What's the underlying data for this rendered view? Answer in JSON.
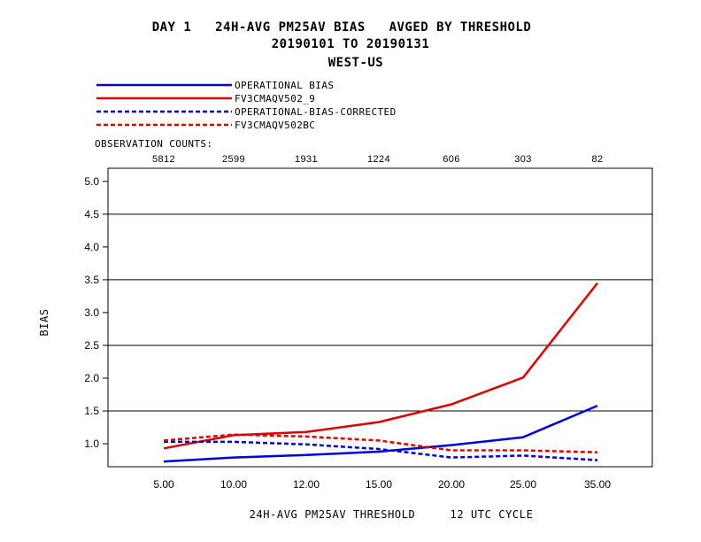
{
  "chart_data": {
    "type": "line",
    "title": "DAY 1   24H-AVG PM25AV BIAS   AVGED BY THRESHOLD",
    "subtitle": "20190101 TO 20190131",
    "region": "WEST-US",
    "observation_counts_label": "OBSERVATION COUNTS:",
    "observation_counts": [
      "5812",
      "2599",
      "1931",
      "1224",
      "606",
      "303",
      "82"
    ],
    "categories": [
      "5.00",
      "10.00",
      "12.00",
      "15.00",
      "20.00",
      "25.00",
      "35.00"
    ],
    "series": [
      {
        "name": "OPERATIONAL     BIAS",
        "color": "#0000dd",
        "dashed": false,
        "values": [
          0.73,
          0.79,
          0.83,
          0.88,
          0.98,
          1.1,
          1.58
        ]
      },
      {
        "name": "FV3CMAQV502_9",
        "color": "#dd0000",
        "dashed": false,
        "values": [
          0.93,
          1.13,
          1.18,
          1.33,
          1.6,
          2.01,
          3.45
        ]
      },
      {
        "name": "OPERATIONAL-BIAS-CORRECTED",
        "color": "#0000dd",
        "dashed": true,
        "values": [
          1.03,
          1.03,
          0.99,
          0.92,
          0.79,
          0.82,
          0.75
        ]
      },
      {
        "name": "FV3CMAQV502BC",
        "color": "#dd0000",
        "dashed": true,
        "values": [
          1.05,
          1.14,
          1.11,
          1.05,
          0.9,
          0.9,
          0.87
        ]
      }
    ],
    "ylabel": "BIAS",
    "xlabel": "24H-AVG PM25AV THRESHOLD     12 UTC CYCLE",
    "yticks": [
      "1.0",
      "1.5",
      "2.0",
      "2.5",
      "3.0",
      "3.5",
      "4.0",
      "4.5",
      "5.0"
    ],
    "ylim": [
      0.65,
      5.2
    ],
    "gridlines": [
      1.5,
      2.5,
      3.5,
      4.5
    ]
  }
}
